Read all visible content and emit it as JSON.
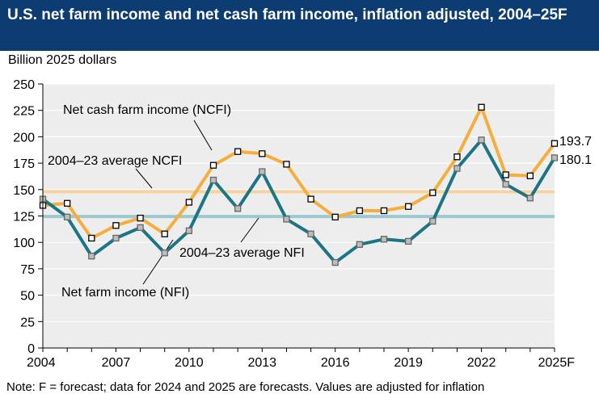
{
  "header": {
    "title": "U.S. net farm income and net cash farm income, inflation adjusted, 2004–25F"
  },
  "note": "Note: F = forecast; data for 2024 and 2025 are forecasts. Values are adjusted for inflation",
  "colors": {
    "title_bg": "#0c3c72",
    "ncfi": "#f5ad3c",
    "nfi": "#1a7584",
    "avg_ncfi": "#f7d39b",
    "avg_nfi": "#9bc9cf",
    "plot_bg": "#ededed"
  },
  "chart_data": {
    "type": "line",
    "ylabel": "Billion 2025 dollars",
    "ylim": [
      0,
      250
    ],
    "yticks": [
      0,
      25,
      50,
      75,
      100,
      125,
      150,
      175,
      200,
      225,
      250
    ],
    "xlim": [
      2004,
      2025
    ],
    "xticks": [
      {
        "value": 2004,
        "label": "2004"
      },
      {
        "value": 2007,
        "label": "2007"
      },
      {
        "value": 2010,
        "label": "2010"
      },
      {
        "value": 2013,
        "label": "2013"
      },
      {
        "value": 2016,
        "label": "2016"
      },
      {
        "value": 2019,
        "label": "2019"
      },
      {
        "value": 2022,
        "label": "2022"
      },
      {
        "value": 2025,
        "label": "2025F"
      }
    ],
    "grid": true,
    "x": [
      2004,
      2005,
      2006,
      2007,
      2008,
      2009,
      2010,
      2011,
      2012,
      2013,
      2014,
      2015,
      2016,
      2017,
      2018,
      2019,
      2020,
      2021,
      2022,
      2023,
      2024,
      2025
    ],
    "series": [
      {
        "name": "Net cash farm income (NCFI)",
        "color": "#f5ad3c",
        "marker": "black-square",
        "values": [
          135,
          137,
          104,
          116,
          123,
          108,
          138,
          173,
          186,
          184,
          174,
          141,
          124,
          130,
          130,
          134,
          147,
          181,
          228,
          164,
          163,
          193.7
        ]
      },
      {
        "name": "Net farm income (NFI)",
        "color": "#1a7584",
        "marker": "gray-square",
        "values": [
          141,
          124,
          87,
          104,
          114,
          90,
          111,
          159,
          132,
          167,
          122,
          108,
          81,
          98,
          103,
          101,
          120,
          170,
          197,
          155,
          142,
          180.1
        ]
      }
    ],
    "averages": [
      {
        "name": "2004–23 average NCFI",
        "value": 148,
        "color": "#f7d39b"
      },
      {
        "name": "2004–23 average NFI",
        "value": 124.5,
        "color": "#9bc9cf"
      }
    ],
    "end_labels": [
      "193.7",
      "180.1"
    ],
    "annotations": {
      "ncfi": "Net cash farm income (NCFI)",
      "avg_ncfi": "2004–23 average NCFI",
      "avg_nfi": "2004–23 average NFI",
      "nfi": "Net farm income (NFI)"
    }
  }
}
